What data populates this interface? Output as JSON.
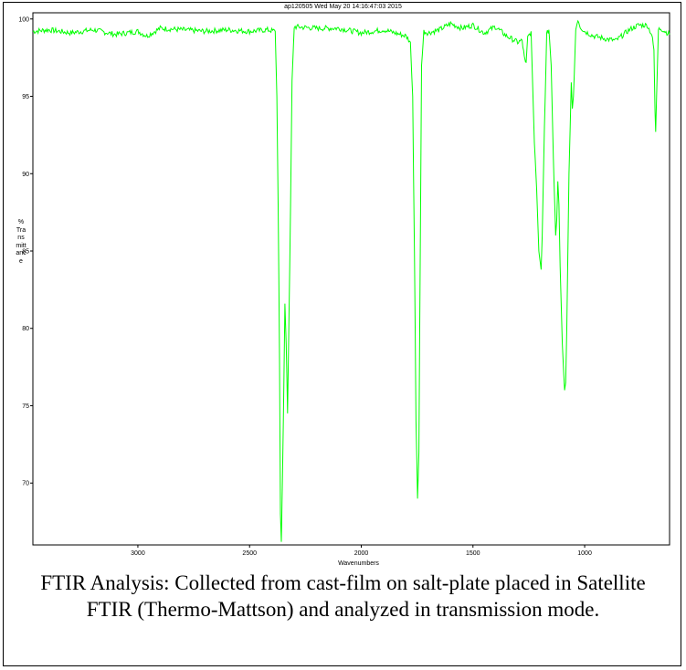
{
  "chart_data": {
    "type": "line",
    "title": "ap120505   Wed May 20 14:16:47:03 2015",
    "xlabel": "Wavenumbers",
    "ylabel": "% Transmittance",
    "xlim": [
      3470,
      620
    ],
    "ylim": [
      66,
      100.4
    ],
    "x_reversed": true,
    "xticks": [
      3000,
      2500,
      2000,
      1500,
      1000
    ],
    "yticks": [
      70,
      75,
      80,
      85,
      90,
      95,
      100
    ],
    "xtick_labels": [
      "3000",
      "2500",
      "2000",
      "1500",
      "1000"
    ],
    "ytick_labels": [
      "70",
      "75",
      "80",
      "85",
      "90",
      "95",
      "100"
    ],
    "series_color": "#00ff00",
    "grid": false,
    "legend": "none",
    "x": [
      3470,
      3400,
      3300,
      3200,
      3100,
      3000,
      2960,
      2900,
      2800,
      2700,
      2600,
      2500,
      2420,
      2385,
      2378,
      2372,
      2366,
      2362,
      2358,
      2352,
      2346,
      2342,
      2336,
      2330,
      2320,
      2310,
      2300,
      2200,
      2100,
      2000,
      1900,
      1800,
      1780,
      1770,
      1762,
      1755,
      1748,
      1742,
      1736,
      1730,
      1720,
      1700,
      1650,
      1600,
      1550,
      1500,
      1450,
      1400,
      1350,
      1300,
      1280,
      1270,
      1265,
      1262,
      1255,
      1240,
      1225,
      1215,
      1205,
      1195,
      1190,
      1180,
      1170,
      1160,
      1150,
      1140,
      1130,
      1125,
      1120,
      1115,
      1110,
      1100,
      1090,
      1085,
      1080,
      1070,
      1065,
      1060,
      1055,
      1050,
      1040,
      1030,
      1020,
      1000,
      960,
      900,
      860,
      800,
      760,
      720,
      700,
      690,
      685,
      682,
      678,
      670,
      660,
      640,
      620
    ],
    "y": [
      99.2,
      99.3,
      99.1,
      99.3,
      99.0,
      99.2,
      98.9,
      99.4,
      99.3,
      99.2,
      99.3,
      99.2,
      99.3,
      99.2,
      95.0,
      88.0,
      78.0,
      68.0,
      66.2,
      71.0,
      77.0,
      81.6,
      79.0,
      74.5,
      84.0,
      96.0,
      99.5,
      99.4,
      99.4,
      99.1,
      99.3,
      98.9,
      98.5,
      95.0,
      85.0,
      74.0,
      69.0,
      72.0,
      85.0,
      97.0,
      99.2,
      99.1,
      99.3,
      99.7,
      99.4,
      99.6,
      99.1,
      99.5,
      98.9,
      98.5,
      98.6,
      97.5,
      97.1,
      97.2,
      98.8,
      99.2,
      92.0,
      89.0,
      85.0,
      83.8,
      86.0,
      93.0,
      99.0,
      99.3,
      97.0,
      91.0,
      86.0,
      87.0,
      89.5,
      88.0,
      84.0,
      79.0,
      76.0,
      76.5,
      80.0,
      90.0,
      93.0,
      95.9,
      94.2,
      95.0,
      99.3,
      100.0,
      99.5,
      99.2,
      98.9,
      98.7,
      98.6,
      99.3,
      99.6,
      99.6,
      99.0,
      98.0,
      94.0,
      92.7,
      95.0,
      99.3,
      99.4,
      99.2,
      99.0
    ]
  },
  "caption": "FTIR Analysis: Collected from cast-film on salt-plate placed in Satellite FTIR (Thermo-Mattson) and analyzed in transmission mode."
}
